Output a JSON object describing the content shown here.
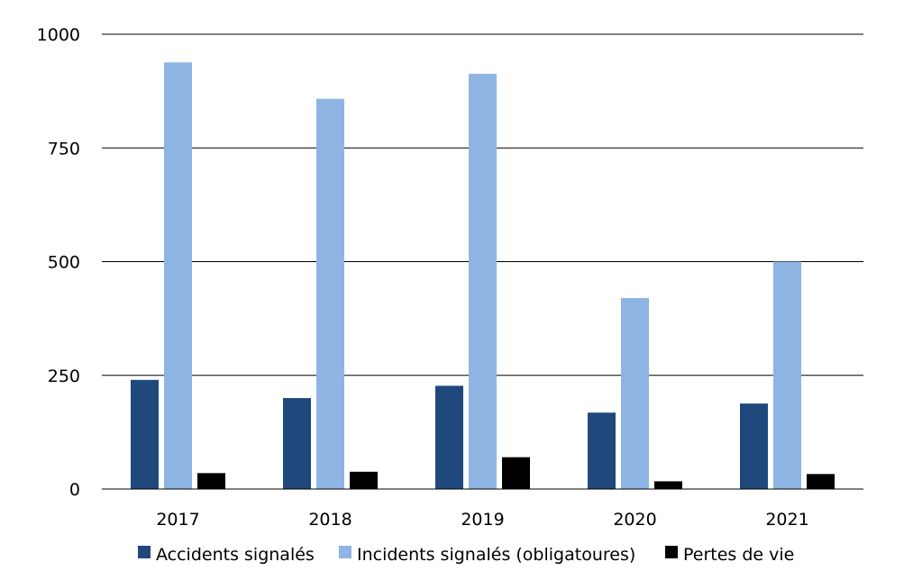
{
  "chart_data": {
    "type": "bar",
    "categories": [
      "2017",
      "2018",
      "2019",
      "2020",
      "2021"
    ],
    "series": [
      {
        "name": "Accidents signalés",
        "values": [
          240,
          200,
          227,
          168,
          188
        ],
        "color": "#1F497D"
      },
      {
        "name": "Incidents signalés (obligatoures)",
        "values": [
          938,
          858,
          913,
          420,
          500
        ],
        "color": "#8EB4E3"
      },
      {
        "name": "Pertes de vie",
        "values": [
          35,
          38,
          70,
          17,
          33
        ],
        "color": "#000000"
      }
    ],
    "yticks": [
      "0",
      "250",
      "500",
      "750",
      "1000"
    ],
    "ylim": [
      0,
      1000
    ],
    "grid": true,
    "legend_position": "bottom"
  }
}
